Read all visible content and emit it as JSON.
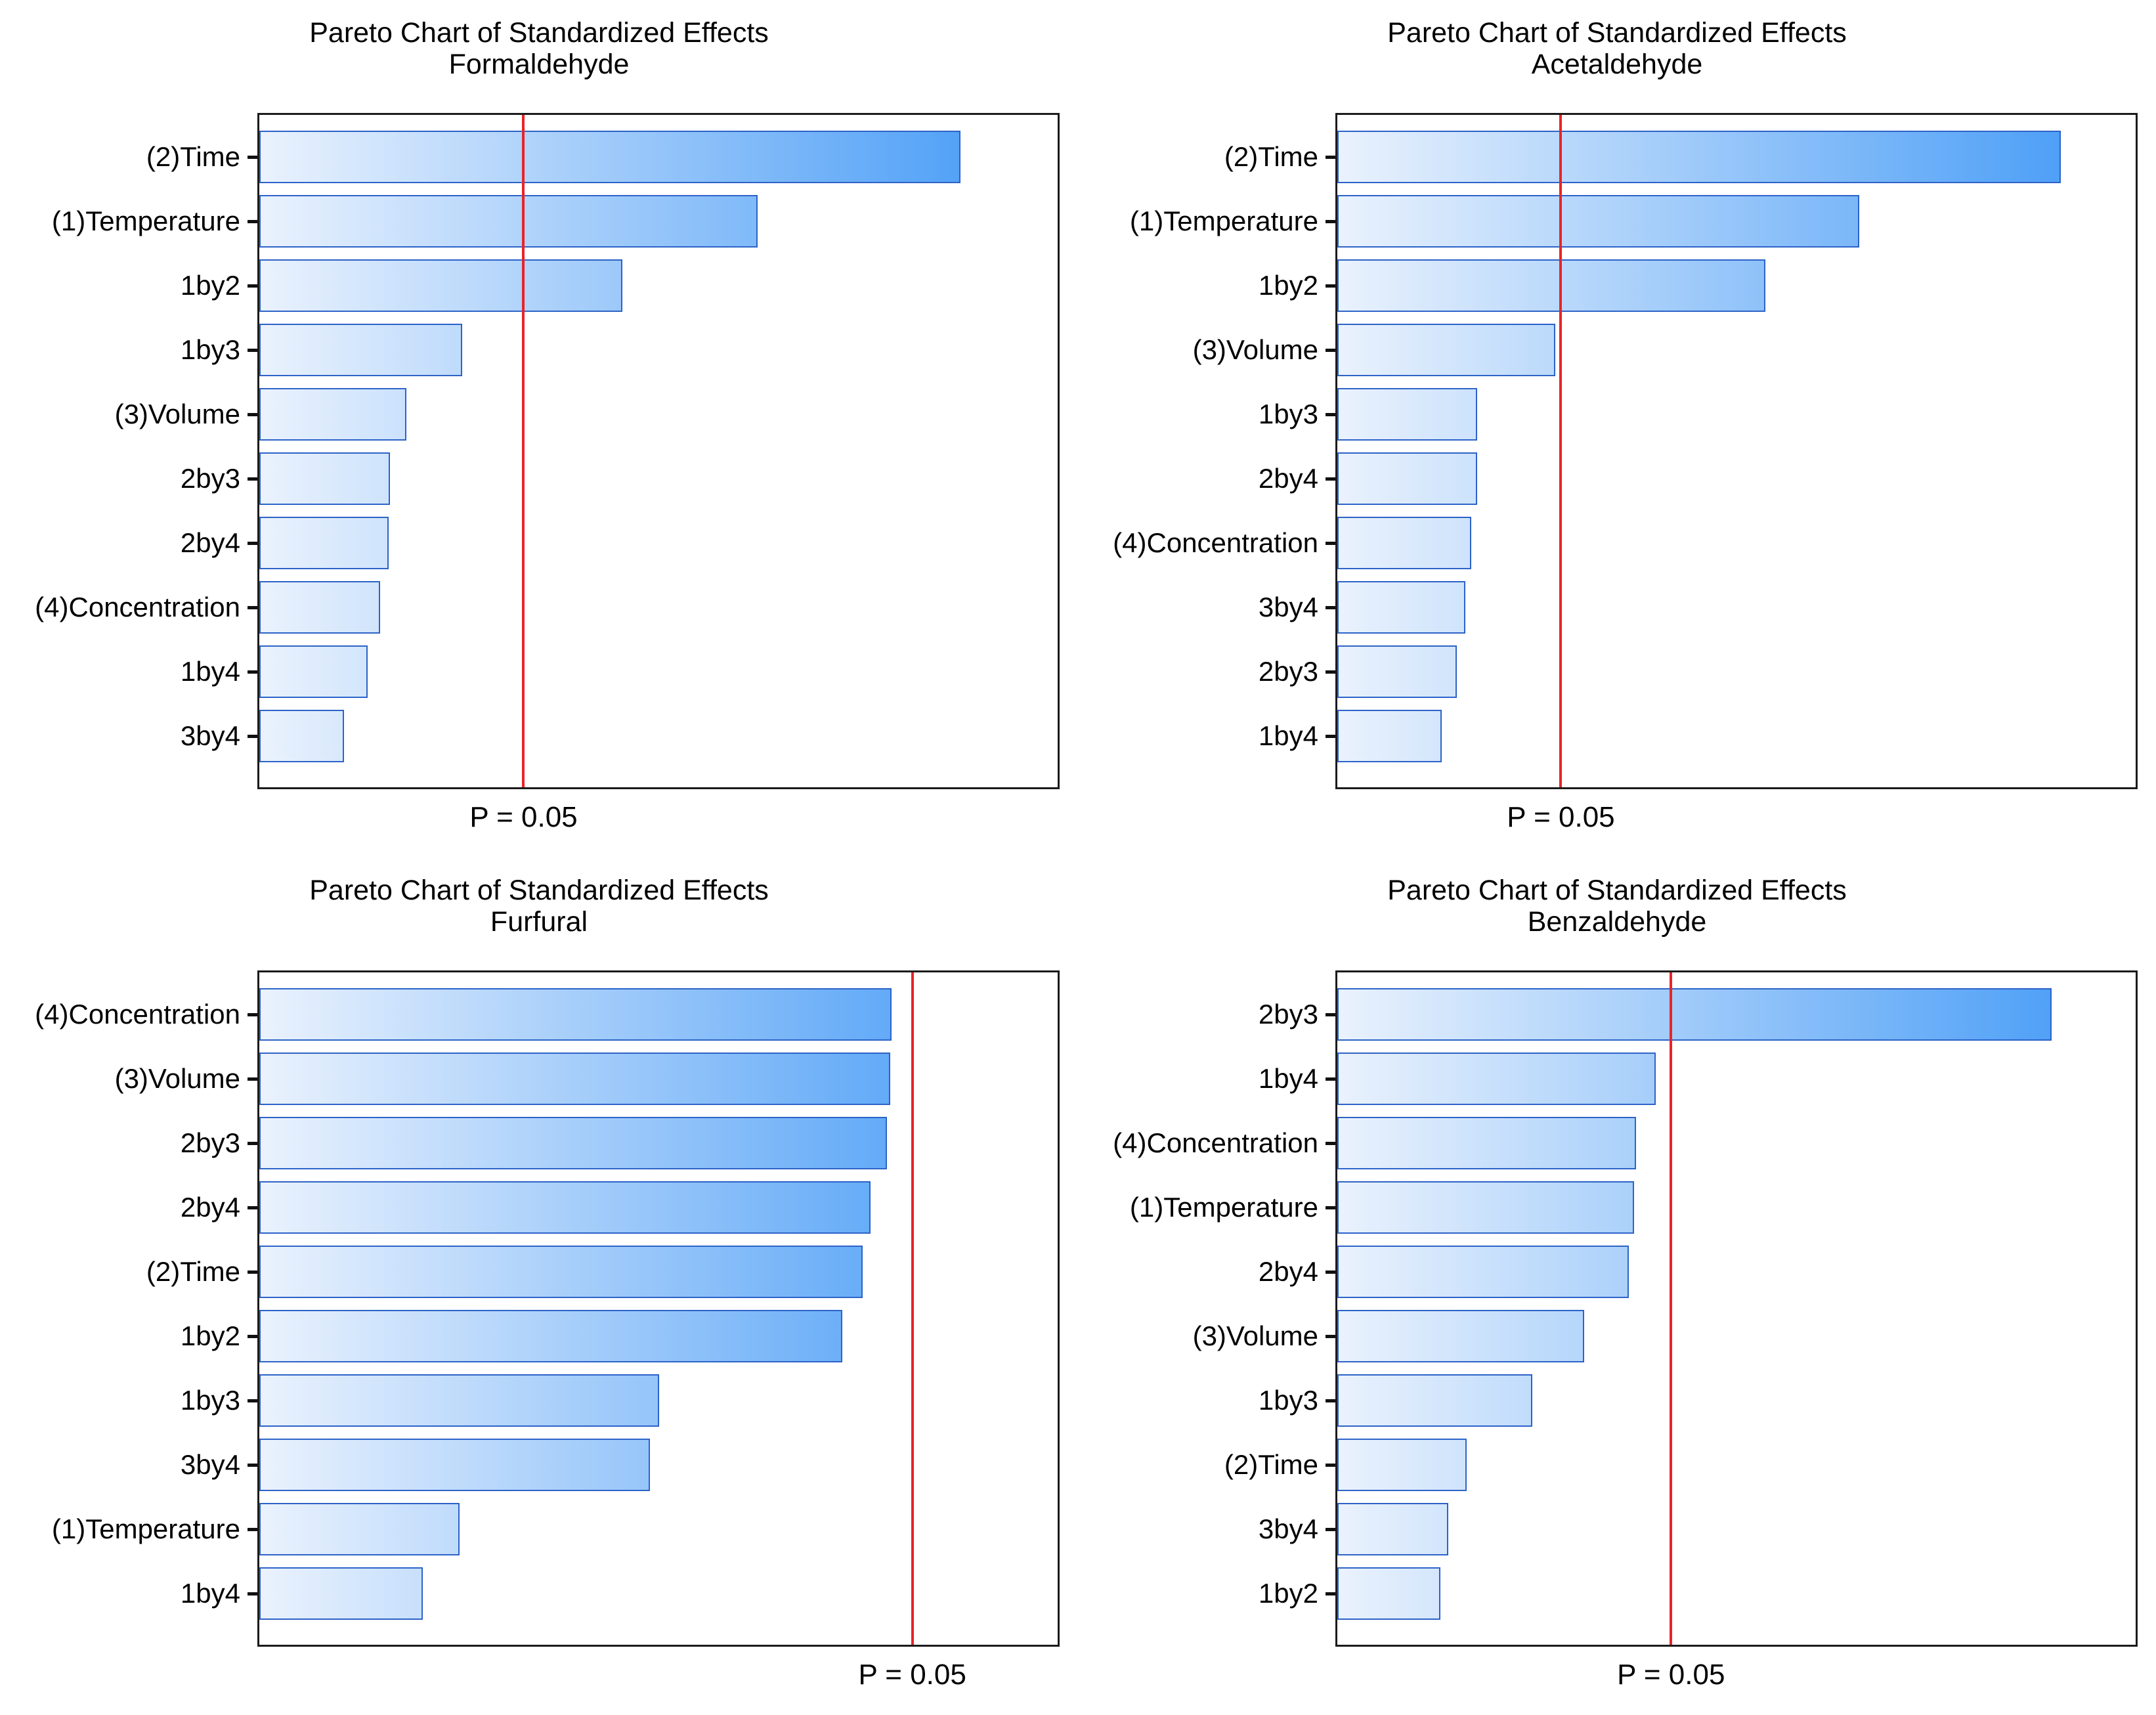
{
  "page": {
    "background": "#ffffff",
    "layout": "2x2 grid of pareto charts"
  },
  "colors": {
    "bar_gradient_start": "#eaf2fd",
    "bar_gradient_end": "#3e97f6",
    "bar_border": "#2d63c8",
    "plot_border": "#1b1b1b",
    "ref_line": "#e82428",
    "text": "#000000",
    "tick": "#111111"
  },
  "chart_data": [
    {
      "type": "bar",
      "orientation": "horizontal",
      "title": "Pareto Chart of Standardized Effects",
      "subtitle": "Formaldehyde",
      "categories": [
        "(2)Time",
        "(1)Temperature",
        "1by2",
        "1by3",
        "(3)Volume",
        "2by3",
        "2by4",
        "(4)Concentration",
        "1by4",
        "3by4"
      ],
      "values_pct_of_axis": [
        87.8,
        62.4,
        45.5,
        25.4,
        18.4,
        16.4,
        16.2,
        15.1,
        13.6,
        10.6
      ],
      "ref_line": {
        "pct_of_axis": 33.1,
        "label": "P = 0.05"
      },
      "x_tick_labels": false,
      "grid": false,
      "legend": false
    },
    {
      "type": "bar",
      "orientation": "horizontal",
      "title": "Pareto Chart of Standardized Effects",
      "subtitle": "Acetaldehyde",
      "categories": [
        "(2)Time",
        "(1)Temperature",
        "1by2",
        "(3)Volume",
        "1by3",
        "2by4",
        "(4)Concentration",
        "3by4",
        "2by3",
        "1by4"
      ],
      "values_pct_of_axis": [
        90.6,
        65.4,
        53.6,
        27.3,
        17.5,
        17.5,
        16.8,
        16.0,
        15.0,
        13.1
      ],
      "ref_line": {
        "pct_of_axis": 28.0,
        "label": "P = 0.05"
      },
      "x_tick_labels": false,
      "grid": false,
      "legend": false
    },
    {
      "type": "bar",
      "orientation": "horizontal",
      "title": "Pareto Chart of Standardized Effects",
      "subtitle": "Furfural",
      "categories": [
        "(4)Concentration",
        "(3)Volume",
        "2by3",
        "2by4",
        "(2)Time",
        "1by2",
        "1by3",
        "3by4",
        "(1)Temperature",
        "1by4"
      ],
      "values_pct_of_axis": [
        79.2,
        79.0,
        78.6,
        76.6,
        75.6,
        73.0,
        50.1,
        48.9,
        25.1,
        20.5
      ],
      "ref_line": {
        "pct_of_axis": 81.8,
        "label": "P = 0.05"
      },
      "x_tick_labels": false,
      "grid": false,
      "legend": false
    },
    {
      "type": "bar",
      "orientation": "horizontal",
      "title": "Pareto Chart of Standardized Effects",
      "subtitle": "Benzaldehyde",
      "categories": [
        "2by3",
        "1by4",
        "(4)Concentration",
        "(1)Temperature",
        "2by4",
        "(3)Volume",
        "1by3",
        "(2)Time",
        "3by4",
        "1by2"
      ],
      "values_pct_of_axis": [
        89.5,
        39.9,
        37.4,
        37.2,
        36.5,
        30.9,
        24.4,
        16.2,
        13.9,
        12.9
      ],
      "ref_line": {
        "pct_of_axis": 41.8,
        "label": "P = 0.05"
      },
      "x_tick_labels": false,
      "grid": false,
      "legend": false
    }
  ]
}
